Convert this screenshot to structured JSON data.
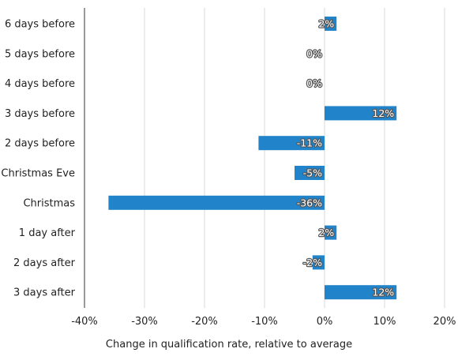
{
  "chart_data": {
    "type": "bar",
    "orientation": "horizontal",
    "categories": [
      "6 days before",
      "5 days before",
      "4 days before",
      "3 days before",
      "2 days before",
      "Christmas Eve",
      "Christmas",
      "1 day after",
      "2 days after",
      "3 days after"
    ],
    "values": [
      2,
      0,
      0,
      12,
      -11,
      -5,
      -36,
      2,
      -2,
      12
    ],
    "data_labels": [
      "2%",
      "0%",
      "0%",
      "12%",
      "-11%",
      "-5%",
      "-36%",
      "2%",
      "-2%",
      "12%"
    ],
    "xticks": [
      -40,
      -30,
      -20,
      -10,
      0,
      10,
      20
    ],
    "xtick_labels": [
      "-40%",
      "-30%",
      "-20%",
      "-10%",
      "0%",
      "10%",
      "20%"
    ],
    "xlim": [
      -40,
      20
    ],
    "xlabel": "Change in qualification rate, relative to average",
    "title": "",
    "grid": "vertical",
    "bar_color": "#2183c9"
  }
}
